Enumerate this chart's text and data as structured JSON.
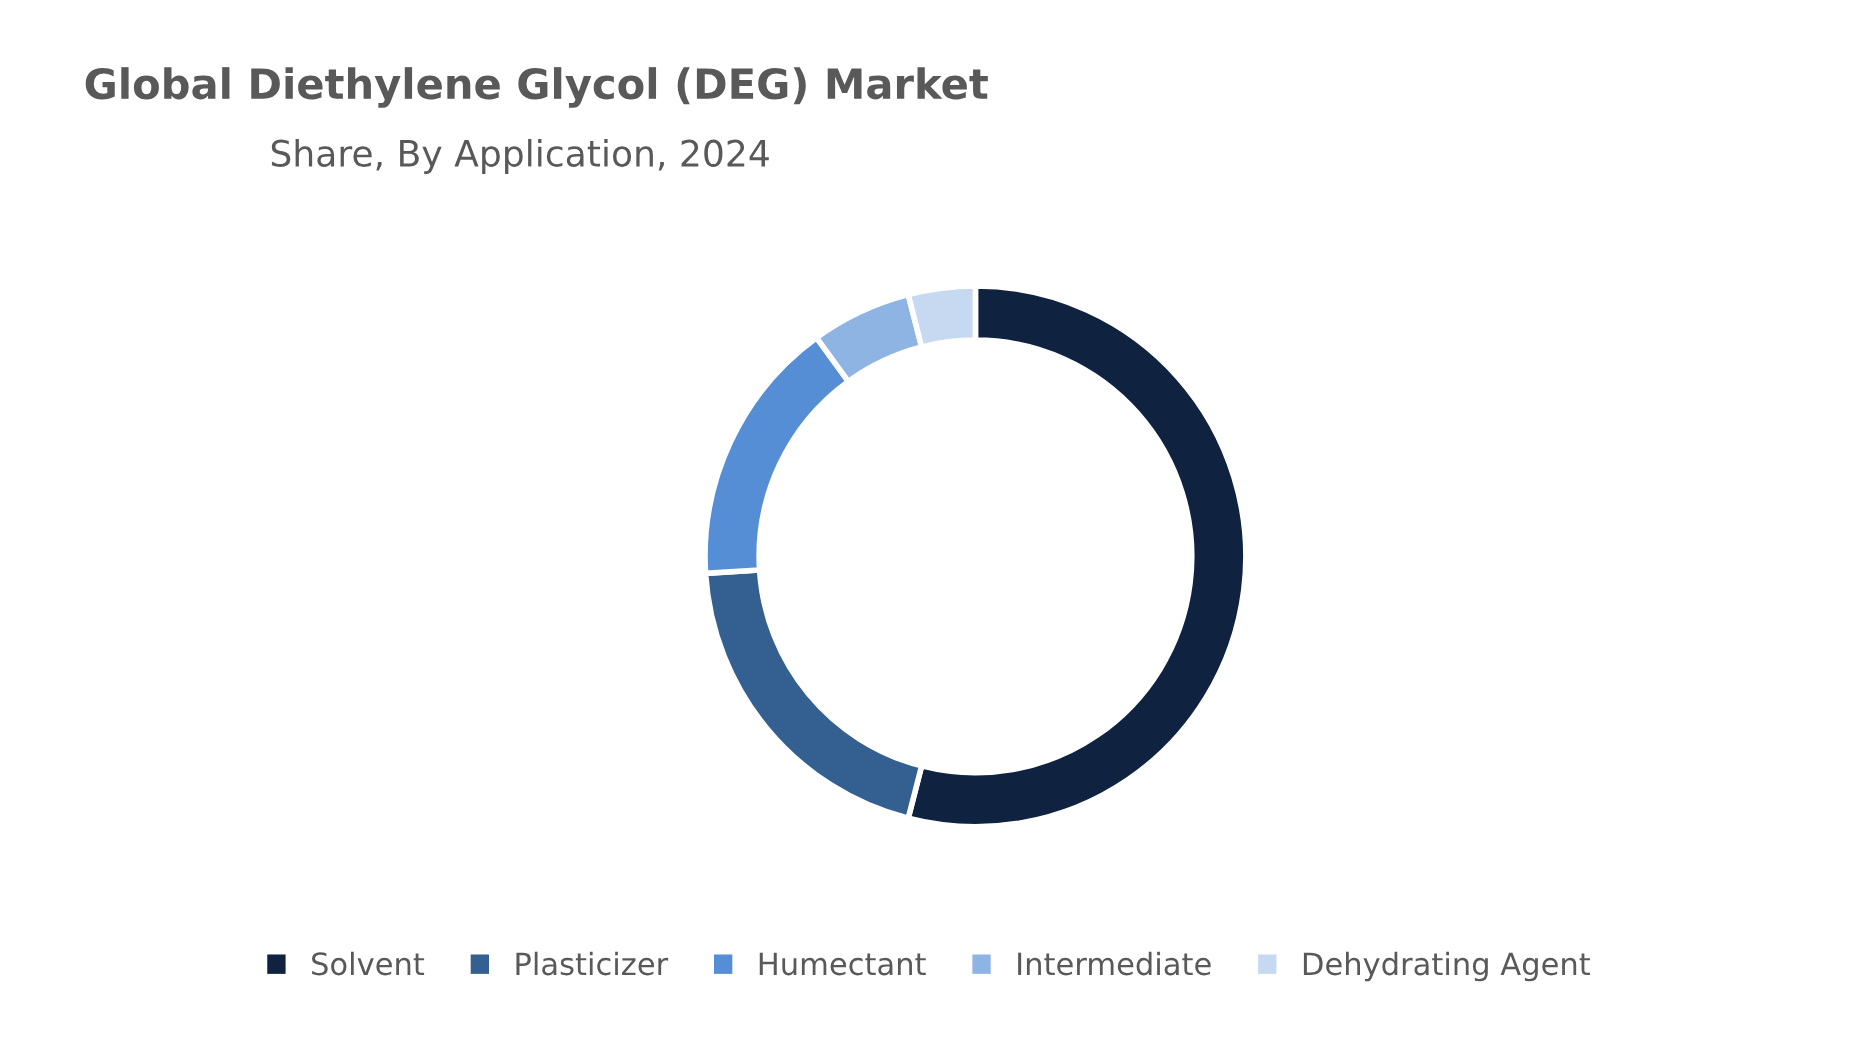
{
  "chart_data": {
    "type": "donut",
    "title": "Global Diethylene Glycol (DEG) Market",
    "subtitle": "Share, By Application, 2024",
    "categories": [
      "Solvent",
      "Plasticizer",
      "Humectant",
      "Intermediate",
      "Dehydrating Agent"
    ],
    "values": [
      54,
      20,
      16,
      6,
      4
    ],
    "colors": [
      "#0f2340",
      "#335f91",
      "#558ed5",
      "#8eb4e3",
      "#c6d9f1"
    ],
    "legend": "bottom"
  }
}
